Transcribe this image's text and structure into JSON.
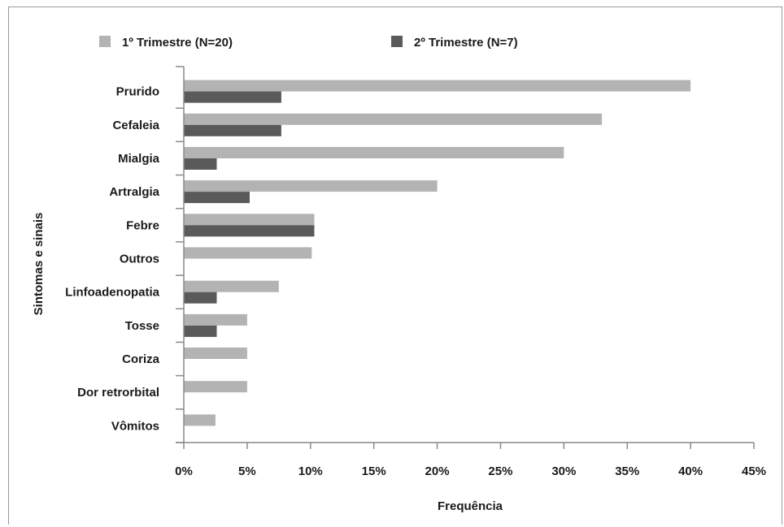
{
  "chart_data": {
    "type": "bar",
    "orientation": "horizontal",
    "categories": [
      "Prurido",
      "Cefaleia",
      "Mialgia",
      "Artralgia",
      "Febre",
      "Outros",
      "Linfoadenopatia",
      "Tosse",
      "Coriza",
      "Dor retrorbital",
      "Vômitos"
    ],
    "series": [
      {
        "name": "1º Trimestre (N=20)",
        "color": "#b3b3b3",
        "values": [
          40,
          33,
          30,
          20,
          10.3,
          10.1,
          7.5,
          5,
          5,
          5,
          2.5
        ]
      },
      {
        "name": "2º Trimestre (N=7)",
        "color": "#5a5a5a",
        "values": [
          7.7,
          7.7,
          2.6,
          5.2,
          10.3,
          null,
          2.6,
          2.6,
          null,
          null,
          null
        ]
      }
    ],
    "xlabel": "Frequência",
    "ylabel": "Sintomas e sinais",
    "xticks": [
      "0%",
      "5%",
      "10%",
      "15%",
      "20%",
      "25%",
      "30%",
      "35%",
      "40%",
      "45%"
    ],
    "xlim": [
      0,
      45
    ],
    "grid": false,
    "legend_position": "top"
  }
}
